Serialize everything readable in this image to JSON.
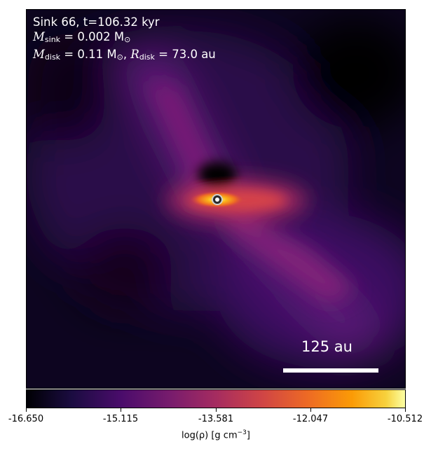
{
  "panel": {
    "line1": "Sink 66, t=106.32 kyr",
    "msink_symbol": "M",
    "msink_sub": "sink",
    "msink_value": " = 0.002 M",
    "msink_unit": "⊙",
    "mdisk_symbol": "M",
    "mdisk_sub": "disk",
    "mdisk_value": " = 0.11 M",
    "mdisk_unit": "⊙",
    "rdisk_symbol": "R",
    "rdisk_sub": "disk",
    "rdisk_value": " = 73.0 au",
    "comma": ", "
  },
  "scalebar": {
    "label": "125 au"
  },
  "colorbar": {
    "ticks": [
      "-16.650",
      "-15.115",
      "-13.581",
      "-12.047",
      "-10.512"
    ],
    "label_prefix": "log(ρ) [g cm",
    "label_exp": "−3",
    "label_suffix": "]",
    "colormap": "inferno"
  }
}
